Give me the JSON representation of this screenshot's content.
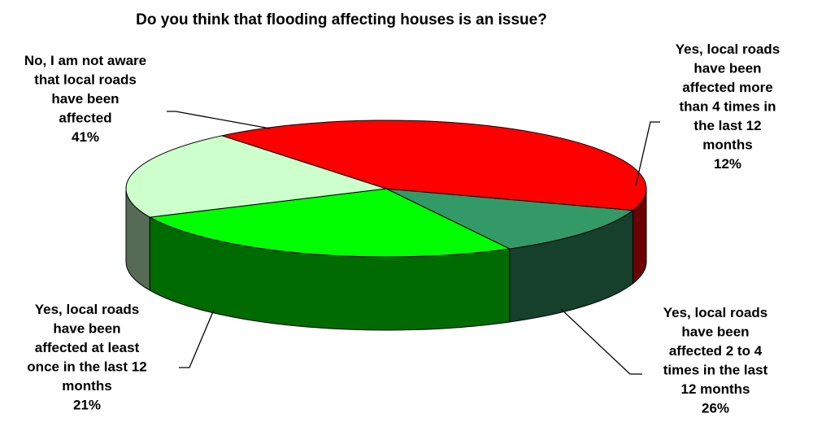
{
  "chart_data": {
    "type": "pie",
    "title": "Do you think that flooding affecting houses is an issue?",
    "slices": [
      {
        "label_lines": [
          "Yes, local roads",
          "have been",
          "affected more",
          "than 4 times in",
          "the last 12",
          "months"
        ],
        "percent_label": "12%",
        "value": 12,
        "color": "#339966"
      },
      {
        "label_lines": [
          "Yes, local roads",
          "have been",
          "affected 2 to 4",
          "times in the last",
          "12 months"
        ],
        "percent_label": "26%",
        "value": 26,
        "color": "#00ff00"
      },
      {
        "label_lines": [
          "Yes, local roads",
          "have been",
          "affected at least",
          "once in the last 12",
          "months"
        ],
        "percent_label": "21%",
        "value": 21,
        "color": "#ccffcc"
      },
      {
        "label_lines": [
          "No, I am not aware",
          "that local roads",
          "have been",
          "affected"
        ],
        "percent_label": "41%",
        "value": 41,
        "color": "#ff0000"
      }
    ]
  }
}
